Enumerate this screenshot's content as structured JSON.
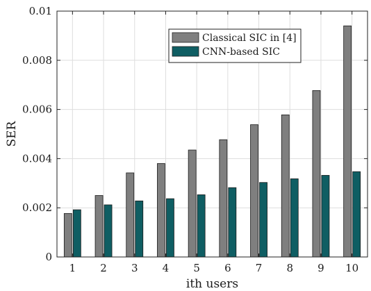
{
  "chart_data": {
    "type": "bar",
    "categories": [
      "1",
      "2",
      "3",
      "4",
      "5",
      "6",
      "7",
      "8",
      "9",
      "10"
    ],
    "series": [
      {
        "name": "Classical SIC in [4]",
        "color": "#7f7f7f",
        "values": [
          0.00177,
          0.0025,
          0.00342,
          0.0038,
          0.00435,
          0.00477,
          0.00538,
          0.00578,
          0.00677,
          0.0094
        ]
      },
      {
        "name": "CNN-based SIC",
        "color": "#0f5e63",
        "values": [
          0.00192,
          0.00212,
          0.00228,
          0.00237,
          0.00253,
          0.00282,
          0.00303,
          0.00318,
          0.00332,
          0.00347
        ]
      }
    ],
    "xlabel": "ith users",
    "ylabel": "SER",
    "ylim": [
      0,
      0.01
    ],
    "yticks": [
      "0",
      "0.002",
      "0.004",
      "0.006",
      "0.008",
      "0.01"
    ],
    "grid": true,
    "legend_position": "top-right"
  }
}
